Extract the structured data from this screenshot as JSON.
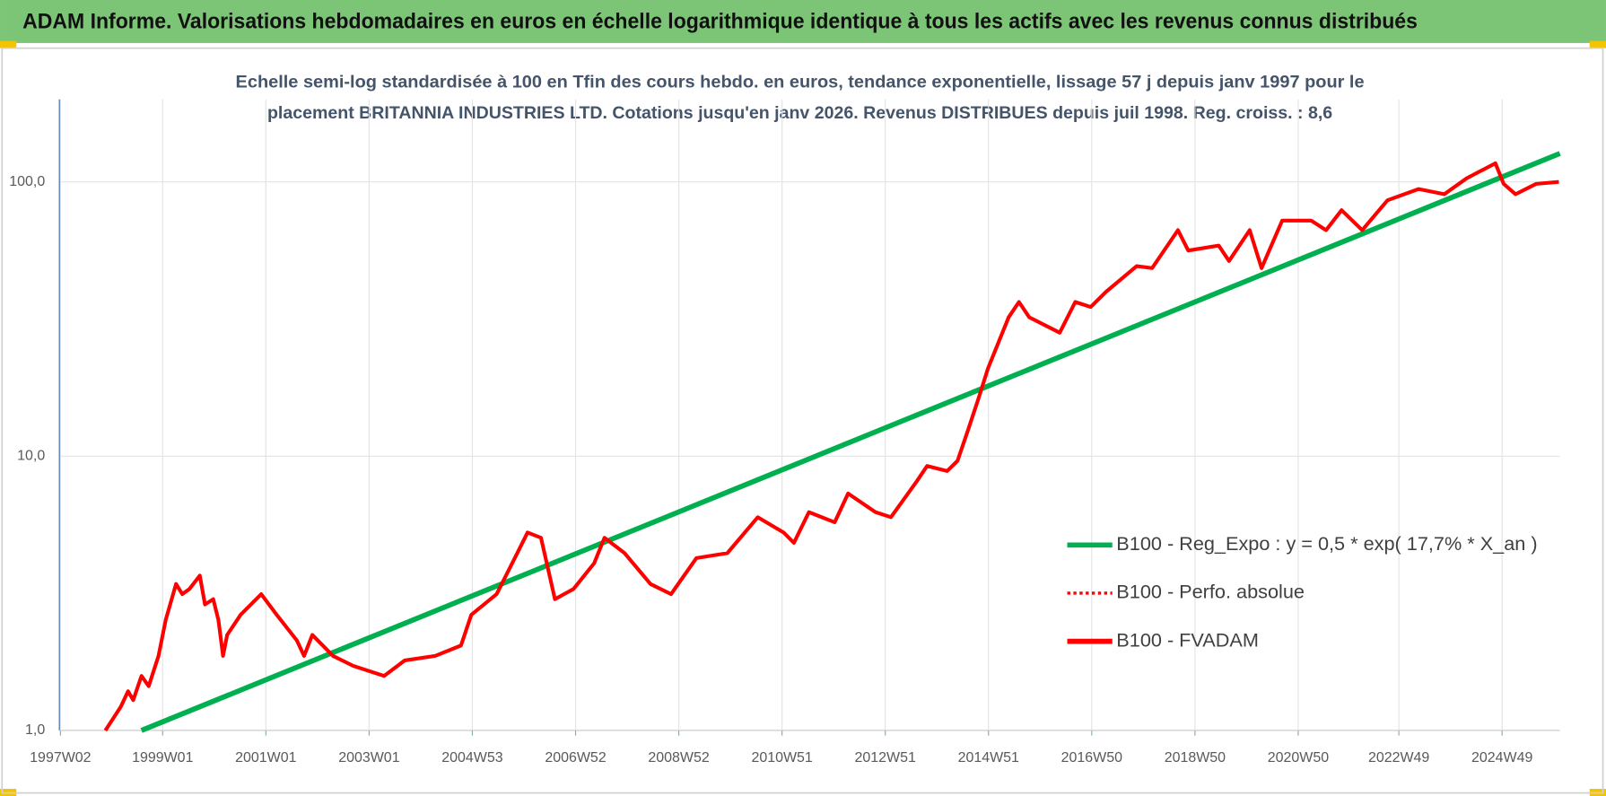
{
  "header": {
    "title": "ADAM Informe. Valorisations hebdomadaires en euros en échelle logarithmique identique à tous les actifs avec les revenus connus distribués"
  },
  "chart_data": {
    "type": "line",
    "title": [
      "Echelle semi-log standardisée à 100 en Tfin des cours hebdo. en euros, tendance exponentielle, lissage 57 j depuis janv 1997 pour le",
      "placement BRITANNIA  INDUSTRIES LTD. Cotations jusqu'en janv 2026. Revenus DISTRIBUES depuis juil 1998. Reg. croiss. : 8,6"
    ],
    "log_scale": true,
    "grid": true,
    "legend": "right",
    "xlim": [
      1997.0,
      2026.07
    ],
    "xticks": [
      {
        "value": 1997.02,
        "label": "1997W02"
      },
      {
        "value": 1999.0,
        "label": "1999W01"
      },
      {
        "value": 2001.0,
        "label": "2001W01"
      },
      {
        "value": 2003.0,
        "label": "2003W01"
      },
      {
        "value": 2005.0,
        "label": "2004W53"
      },
      {
        "value": 2007.0,
        "label": "2006W52"
      },
      {
        "value": 2009.0,
        "label": "2008W52"
      },
      {
        "value": 2011.0,
        "label": "2010W51"
      },
      {
        "value": 2013.0,
        "label": "2012W51"
      },
      {
        "value": 2015.0,
        "label": "2014W51"
      },
      {
        "value": 2017.0,
        "label": "2016W50"
      },
      {
        "value": 2019.0,
        "label": "2018W50"
      },
      {
        "value": 2021.0,
        "label": "2020W50"
      },
      {
        "value": 2022.95,
        "label": "2022W49"
      },
      {
        "value": 2024.95,
        "label": "2024W49"
      }
    ],
    "ylim": [
      1,
      200
    ],
    "yticks": [
      {
        "value": 1,
        "label": "1,0"
      },
      {
        "value": 10,
        "label": "10,0"
      },
      {
        "value": 100,
        "label": "100,0"
      }
    ],
    "series": [
      {
        "name": "B100 - Reg_Expo : y = 0,5 * exp( 17,7% *  X_an )",
        "color": "#00b050",
        "style": "solid",
        "x": [
          1998.59,
          2026.07
        ],
        "values": [
          1.0,
          127
        ]
      },
      {
        "name": "B100 - Perfo. absolue",
        "color": "#ff0000",
        "style": "dotted"
      },
      {
        "name": "B100 - FVADAM",
        "color": "#ff0000",
        "style": "solid",
        "x": [
          1997.89,
          1998.19,
          1998.33,
          1998.43,
          1998.59,
          1998.73,
          1998.92,
          1999.06,
          1999.26,
          1999.38,
          1999.52,
          1999.72,
          1999.82,
          1999.98,
          2000.08,
          2000.17,
          2000.25,
          2000.51,
          2000.91,
          2001.21,
          2001.6,
          2001.74,
          2001.9,
          2002.3,
          2002.69,
          2003.29,
          2003.69,
          2004.28,
          2004.78,
          2004.98,
          2005.47,
          2005.87,
          2006.07,
          2006.33,
          2006.6,
          2006.96,
          2007.36,
          2007.56,
          2007.95,
          2008.45,
          2008.85,
          2009.34,
          2009.94,
          2010.53,
          2011.03,
          2011.23,
          2011.52,
          2012.02,
          2012.28,
          2012.81,
          2013.11,
          2013.61,
          2013.81,
          2014.2,
          2014.4,
          2014.6,
          2014.8,
          2014.99,
          2015.39,
          2015.59,
          2015.79,
          2016.38,
          2016.68,
          2016.98,
          2017.28,
          2017.87,
          2018.17,
          2018.67,
          2018.87,
          2019.46,
          2019.66,
          2020.06,
          2020.29,
          2020.69,
          2021.25,
          2021.54,
          2021.84,
          2022.24,
          2022.73,
          2023.33,
          2023.83,
          2024.26,
          2024.82,
          2024.98,
          2025.21,
          2025.61,
          2026.05
        ],
        "values": [
          1.0,
          1.22,
          1.39,
          1.29,
          1.58,
          1.45,
          1.87,
          2.53,
          3.42,
          3.14,
          3.28,
          3.67,
          2.88,
          3.01,
          2.53,
          1.87,
          2.23,
          2.64,
          3.14,
          2.64,
          2.13,
          1.87,
          2.23,
          1.87,
          1.72,
          1.58,
          1.8,
          1.87,
          2.04,
          2.64,
          3.14,
          4.43,
          5.27,
          5.04,
          3.01,
          3.28,
          4.07,
          5.04,
          4.43,
          3.42,
          3.14,
          4.25,
          4.43,
          5.99,
          5.27,
          4.83,
          6.25,
          5.74,
          7.31,
          6.25,
          5.99,
          8.1,
          9.21,
          8.83,
          9.62,
          12.4,
          16.1,
          20.9,
          32.1,
          36.5,
          32.1,
          28.2,
          36.5,
          35.0,
          39.8,
          49.3,
          48.5,
          66.7,
          56.2,
          58.6,
          51.5,
          66.7,
          48.5,
          72.3,
          72.3,
          66.7,
          78.9,
          66.7,
          85.7,
          94.2,
          90.2,
          103,
          117,
          98.4,
          90.2,
          98.4,
          100
        ]
      }
    ]
  }
}
